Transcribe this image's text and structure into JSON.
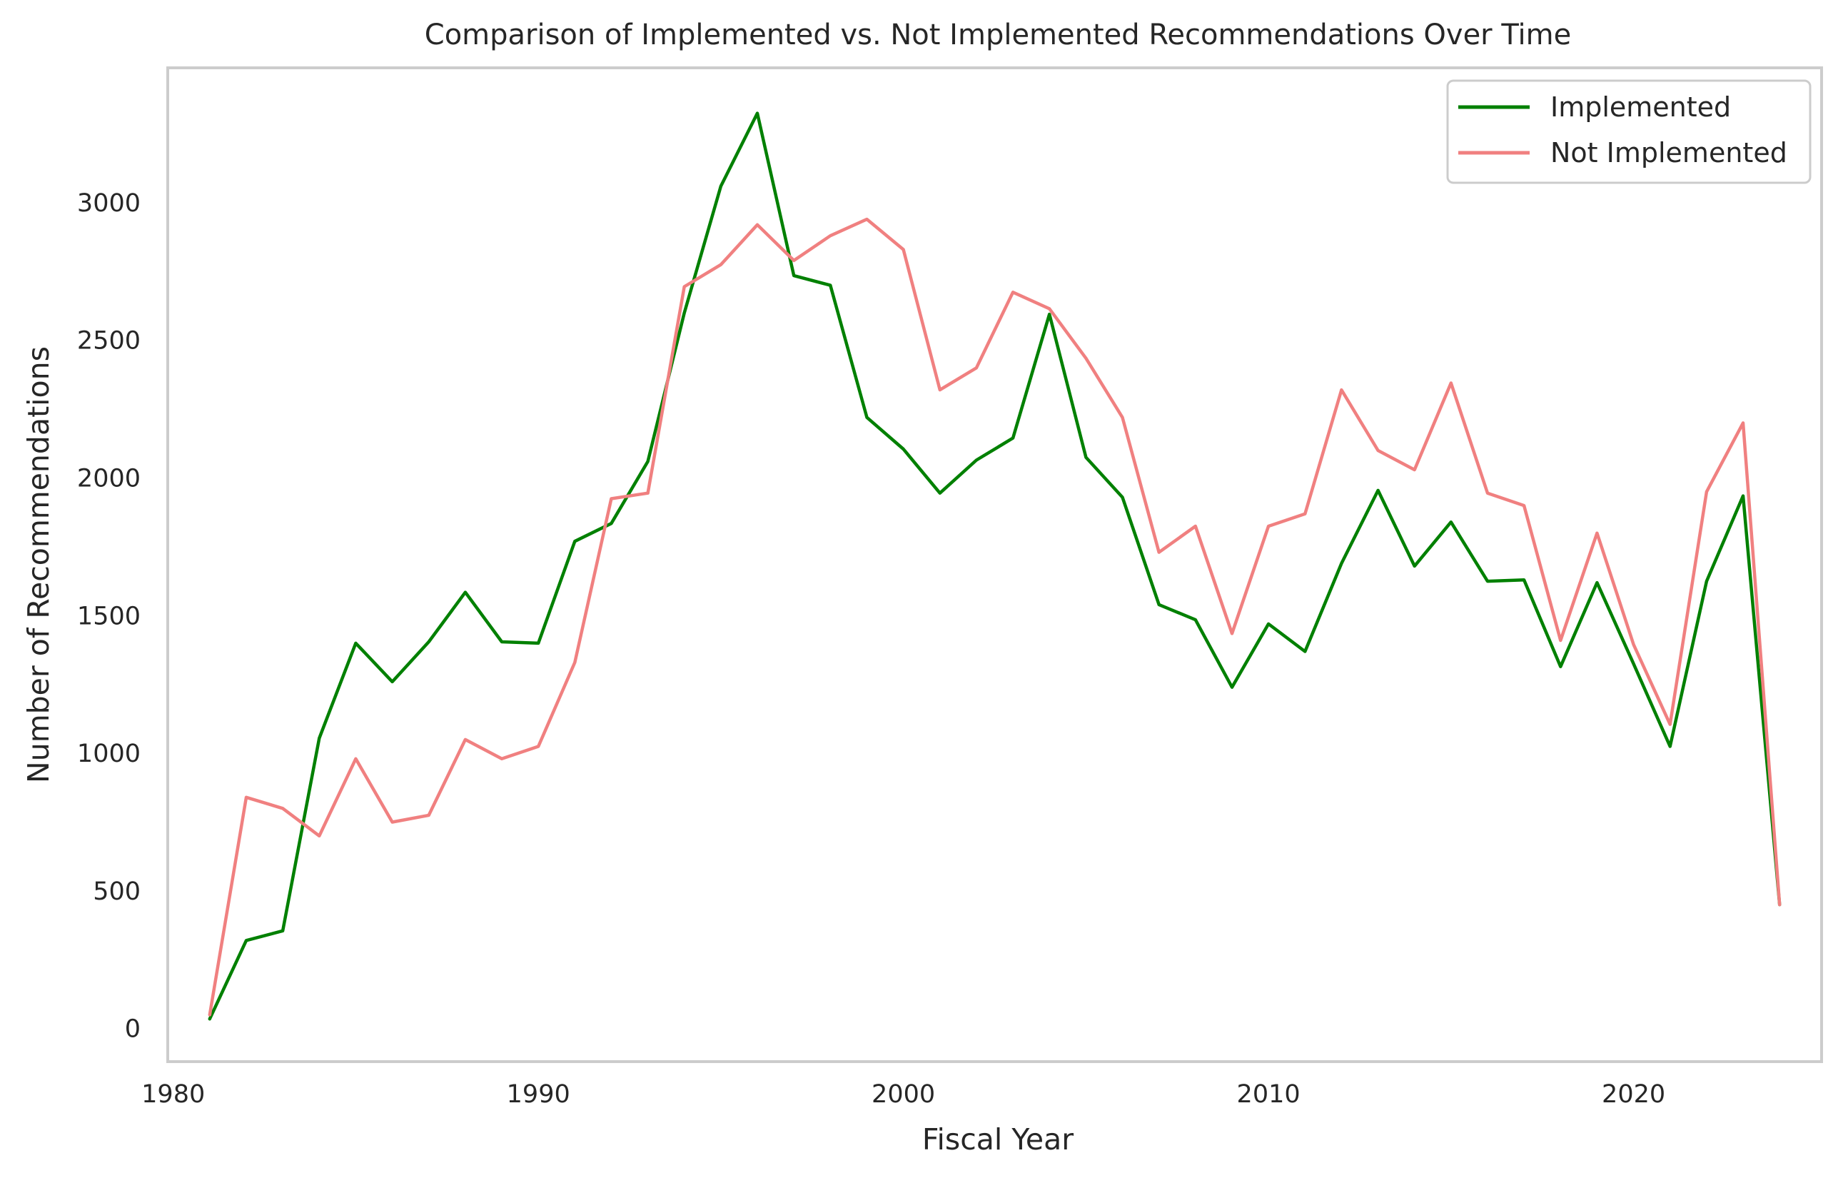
{
  "chart_data": {
    "type": "line",
    "title": "Comparison of Implemented vs. Not Implemented Recommendations Over Time",
    "xlabel": "Fiscal Year",
    "ylabel": "Number of Recommendations",
    "xlim": [
      1979.85,
      2025.15
    ],
    "ylim": [
      -120,
      3490
    ],
    "x_ticks": [
      1980,
      1990,
      2000,
      2010,
      2020
    ],
    "y_ticks": [
      0,
      500,
      1000,
      1500,
      2000,
      2500,
      3000
    ],
    "grid": false,
    "legend_position": "top-right",
    "x": [
      1981,
      1982,
      1983,
      1984,
      1985,
      1986,
      1987,
      1988,
      1989,
      1990,
      1991,
      1992,
      1993,
      1994,
      1995,
      1996,
      1997,
      1998,
      1999,
      2000,
      2001,
      2002,
      2003,
      2004,
      2005,
      2006,
      2007,
      2008,
      2009,
      2010,
      2011,
      2012,
      2013,
      2014,
      2015,
      2016,
      2017,
      2018,
      2019,
      2020,
      2021,
      2022,
      2023,
      2024
    ],
    "series": [
      {
        "name": "Implemented",
        "color": "#008000",
        "values": [
          35,
          320,
          355,
          1055,
          1400,
          1260,
          1405,
          1585,
          1405,
          1400,
          1770,
          1835,
          2060,
          2600,
          3060,
          3325,
          2735,
          2700,
          2220,
          2105,
          1945,
          2065,
          2145,
          2595,
          2075,
          1930,
          1540,
          1485,
          1240,
          1470,
          1370,
          1690,
          1955,
          1680,
          1840,
          1625,
          1630,
          1315,
          1620,
          1325,
          1025,
          1625,
          1935,
          450
        ]
      },
      {
        "name": "Not Implemented",
        "color": "#f08080",
        "values": [
          50,
          840,
          800,
          700,
          980,
          750,
          775,
          1050,
          980,
          1025,
          1330,
          1925,
          1945,
          2695,
          2775,
          2920,
          2790,
          2880,
          2940,
          2830,
          2320,
          2400,
          2675,
          2615,
          2435,
          2220,
          1730,
          1825,
          1435,
          1825,
          1870,
          2320,
          2100,
          2030,
          2345,
          1945,
          1900,
          1410,
          1800,
          1395,
          1105,
          1950,
          2200,
          450
        ]
      }
    ]
  }
}
